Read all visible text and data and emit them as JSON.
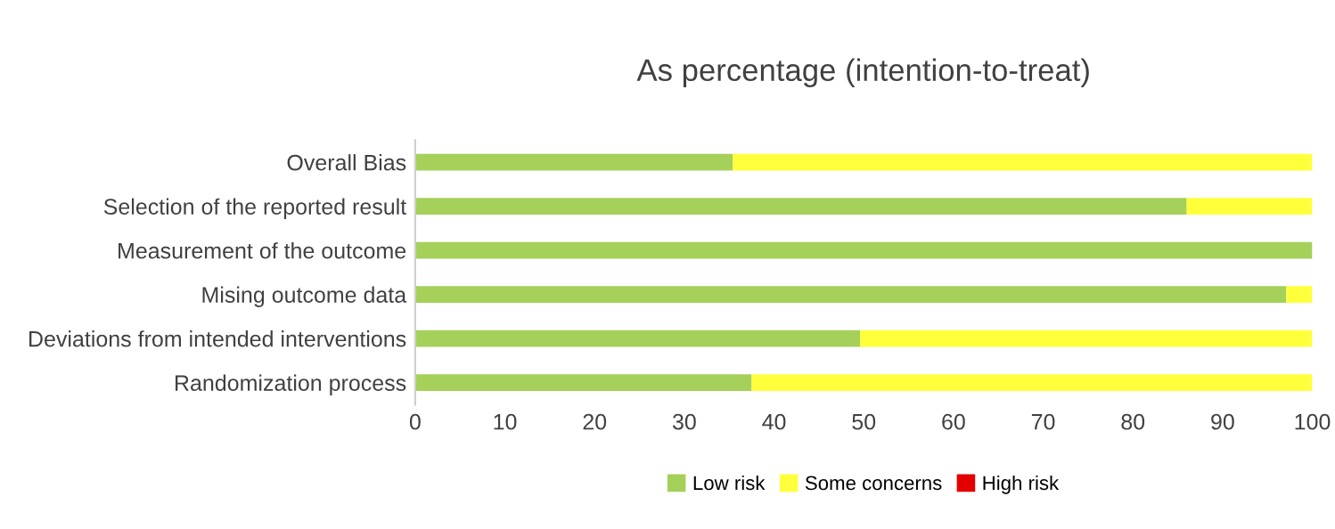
{
  "chart_data": {
    "type": "bar",
    "orientation": "horizontal",
    "stacked": true,
    "title": "As percentage (intention-to-treat)",
    "categories": [
      "Overall Bias",
      "Selection of the reported result",
      "Measurement of the outcome",
      "Mising outcome data",
      "Deviations from intended interventions",
      "Randomization process"
    ],
    "series": [
      {
        "name": "Low risk",
        "color": "#a5d05a",
        "values": [
          35.4,
          86,
          100,
          97.1,
          49.6,
          37.5
        ]
      },
      {
        "name": "Some concerns",
        "color": "#ffff3b",
        "values": [
          64.6,
          14,
          0,
          2.9,
          50.4,
          62.5
        ]
      },
      {
        "name": "High risk",
        "color": "#e30000",
        "values": [
          0,
          0,
          0,
          0,
          0,
          0
        ]
      }
    ],
    "xlim": [
      0,
      100
    ],
    "xticks": [
      0,
      10,
      20,
      30,
      40,
      50,
      60,
      70,
      80,
      90,
      100
    ],
    "grid": false,
    "legend": "bottom"
  }
}
